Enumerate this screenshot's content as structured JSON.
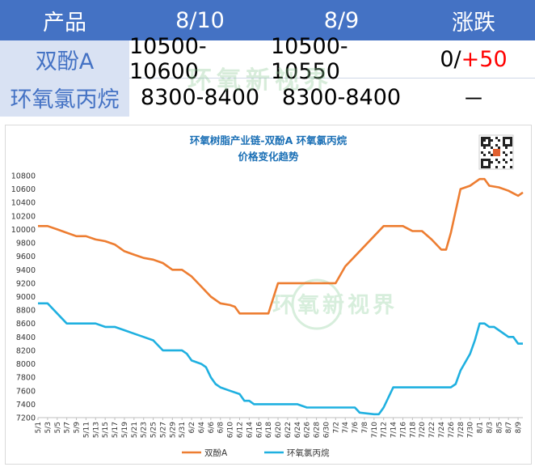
{
  "table": {
    "headers": [
      "产品",
      "8/10",
      "8/9",
      "涨跌"
    ],
    "rows": [
      {
        "product": "双酚A",
        "d1": "10500-10600",
        "d2": "10500-10550",
        "change_base": "0/",
        "change_delta": "+50"
      },
      {
        "product": "环氧氯丙烷",
        "d1": "8300-8400",
        "d2": "8300-8400",
        "change_base": "－",
        "change_delta": ""
      }
    ]
  },
  "watermark_text": "环氧新视界",
  "chart_data": {
    "type": "line",
    "title": "环氧树脂产业链-双酚A 环氧氯丙烷",
    "subtitle": "价格变化趋势",
    "xlabel": "",
    "ylabel": "",
    "ylim": [
      7200,
      10800
    ],
    "yticks": [
      7200,
      7400,
      7600,
      7800,
      8000,
      8200,
      8400,
      8600,
      8800,
      9000,
      9200,
      9400,
      9600,
      9800,
      10000,
      10200,
      10400,
      10600,
      10800
    ],
    "xlim": [
      "5/1",
      "8/10"
    ],
    "xticks": [
      "5/1",
      "5/3",
      "5/5",
      "5/7",
      "5/9",
      "5/11",
      "5/13",
      "5/15",
      "5/17",
      "5/19",
      "5/21",
      "5/23",
      "5/25",
      "5/27",
      "5/29",
      "5/31",
      "6/2",
      "6/4",
      "6/6",
      "6/8",
      "6/10",
      "6/12",
      "6/14",
      "6/16",
      "6/18",
      "6/20",
      "6/22",
      "6/24",
      "6/26",
      "6/28",
      "6/30",
      "7/2",
      "7/4",
      "7/6",
      "7/8",
      "7/10",
      "7/12",
      "7/14",
      "7/16",
      "7/18",
      "7/20",
      "7/22",
      "7/24",
      "7/26",
      "7/28",
      "7/30",
      "8/1",
      "8/3",
      "8/5",
      "8/7",
      "8/9"
    ],
    "grid": false,
    "legend_position": "bottom",
    "series": [
      {
        "name": "双酚A",
        "color": "#ed7d31",
        "points": [
          [
            "5/1",
            10050
          ],
          [
            "5/3",
            10050
          ],
          [
            "5/5",
            10000
          ],
          [
            "5/7",
            9950
          ],
          [
            "5/9",
            9900
          ],
          [
            "5/11",
            9900
          ],
          [
            "5/13",
            9850
          ],
          [
            "5/15",
            9825
          ],
          [
            "5/17",
            9775
          ],
          [
            "5/19",
            9675
          ],
          [
            "5/21",
            9625
          ],
          [
            "5/23",
            9575
          ],
          [
            "5/25",
            9550
          ],
          [
            "5/27",
            9500
          ],
          [
            "5/29",
            9400
          ],
          [
            "5/31",
            9400
          ],
          [
            "6/2",
            9300
          ],
          [
            "6/4",
            9150
          ],
          [
            "6/6",
            9000
          ],
          [
            "6/8",
            8900
          ],
          [
            "6/10",
            8875
          ],
          [
            "6/11",
            8850
          ],
          [
            "6/12",
            8750
          ],
          [
            "6/14",
            8750
          ],
          [
            "6/16",
            8750
          ],
          [
            "6/18",
            8750
          ],
          [
            "6/20",
            9200
          ],
          [
            "6/22",
            9200
          ],
          [
            "6/24",
            9200
          ],
          [
            "6/26",
            9200
          ],
          [
            "6/28",
            9200
          ],
          [
            "6/30",
            9200
          ],
          [
            "7/2",
            9200
          ],
          [
            "7/4",
            9450
          ],
          [
            "7/6",
            9600
          ],
          [
            "7/8",
            9750
          ],
          [
            "7/10",
            9900
          ],
          [
            "7/12",
            10050
          ],
          [
            "7/14",
            10050
          ],
          [
            "7/16",
            10050
          ],
          [
            "7/18",
            9975
          ],
          [
            "7/20",
            9975
          ],
          [
            "7/22",
            9850
          ],
          [
            "7/24",
            9700
          ],
          [
            "7/25",
            9700
          ],
          [
            "7/26",
            9950
          ],
          [
            "7/28",
            10600
          ],
          [
            "7/30",
            10650
          ],
          [
            "8/1",
            10750
          ],
          [
            "8/2",
            10750
          ],
          [
            "8/3",
            10650
          ],
          [
            "8/5",
            10625
          ],
          [
            "8/7",
            10575
          ],
          [
            "8/9",
            10500
          ],
          [
            "8/10",
            10550
          ]
        ]
      },
      {
        "name": "环氧氯丙烷",
        "color": "#1fb0e0",
        "points": [
          [
            "5/1",
            8900
          ],
          [
            "5/3",
            8900
          ],
          [
            "5/5",
            8750
          ],
          [
            "5/7",
            8600
          ],
          [
            "5/9",
            8600
          ],
          [
            "5/11",
            8600
          ],
          [
            "5/13",
            8600
          ],
          [
            "5/15",
            8550
          ],
          [
            "5/17",
            8550
          ],
          [
            "5/19",
            8500
          ],
          [
            "5/21",
            8450
          ],
          [
            "5/23",
            8400
          ],
          [
            "5/25",
            8350
          ],
          [
            "5/27",
            8200
          ],
          [
            "5/29",
            8200
          ],
          [
            "5/31",
            8200
          ],
          [
            "6/1",
            8150
          ],
          [
            "6/2",
            8050
          ],
          [
            "6/4",
            8000
          ],
          [
            "6/5",
            7950
          ],
          [
            "6/6",
            7800
          ],
          [
            "6/7",
            7700
          ],
          [
            "6/8",
            7650
          ],
          [
            "6/10",
            7600
          ],
          [
            "6/12",
            7550
          ],
          [
            "6/13",
            7450
          ],
          [
            "6/14",
            7450
          ],
          [
            "6/15",
            7400
          ],
          [
            "6/18",
            7400
          ],
          [
            "6/20",
            7400
          ],
          [
            "6/22",
            7400
          ],
          [
            "6/24",
            7400
          ],
          [
            "6/26",
            7350
          ],
          [
            "6/28",
            7350
          ],
          [
            "6/30",
            7350
          ],
          [
            "7/2",
            7350
          ],
          [
            "7/4",
            7350
          ],
          [
            "7/6",
            7350
          ],
          [
            "7/7",
            7275
          ],
          [
            "7/10",
            7250
          ],
          [
            "7/11",
            7250
          ],
          [
            "7/12",
            7350
          ],
          [
            "7/14",
            7650
          ],
          [
            "7/16",
            7650
          ],
          [
            "7/18",
            7650
          ],
          [
            "7/20",
            7650
          ],
          [
            "7/22",
            7650
          ],
          [
            "7/24",
            7650
          ],
          [
            "7/26",
            7650
          ],
          [
            "7/27",
            7700
          ],
          [
            "7/28",
            7900
          ],
          [
            "7/30",
            8150
          ],
          [
            "7/31",
            8350
          ],
          [
            "8/1",
            8600
          ],
          [
            "8/2",
            8600
          ],
          [
            "8/3",
            8550
          ],
          [
            "8/4",
            8550
          ],
          [
            "8/5",
            8500
          ],
          [
            "8/7",
            8400
          ],
          [
            "8/8",
            8400
          ],
          [
            "8/9",
            8300
          ],
          [
            "8/10",
            8300
          ]
        ]
      }
    ]
  }
}
